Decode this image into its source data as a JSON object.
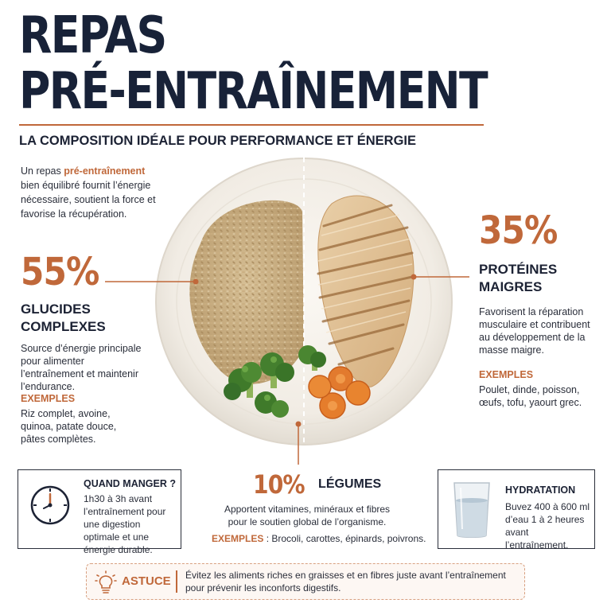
{
  "header": {
    "title_line1": "REPAS",
    "title_line2": "PRÉ-ENTRAÎNEMENT",
    "subtitle": "LA COMPOSITION IDÉALE POUR PERFORMANCE ET ÉNERGIE"
  },
  "intro": {
    "before": "Un repas ",
    "highlight": "pré-entraînement",
    "after": " bien équilibré fournit l’énergie nécessaire, soutient la force et favorise la récupération."
  },
  "carbs": {
    "percent": "55%",
    "label_line1": "GLUCIDES",
    "label_line2": "COMPLEXES",
    "description": "Source d’énergie principale pour alimenter l’entraînement et maintenir l’endurance.",
    "examples_label": "EXEMPLES",
    "examples": "Riz complet, avoine, quinoa, patate douce, pâtes complètes."
  },
  "proteins": {
    "percent": "35%",
    "label_line1": "PROTÉINES",
    "label_line2": "MAIGRES",
    "description": "Favorisent la réparation musculaire et contribuent au développement de la masse maigre.",
    "examples_label": "EXEMPLES",
    "examples": "Poulet, dinde, poisson, œufs, tofu, yaourt grec."
  },
  "vegetables": {
    "percent": "10%",
    "label": "LÉGUMES",
    "description_line1": "Apportent vitamines, minéraux et fibres",
    "description_line2": "pour le soutien global de l’organisme.",
    "examples_label": "EXEMPLES",
    "examples": " : Brocoli, carottes, épinards, poivrons."
  },
  "when": {
    "icon": "clock-icon",
    "title": "QUAND MANGER ?",
    "text": "1h30 à 3h avant l’entraînement pour une digestion optimale et une énergie durable."
  },
  "hydration": {
    "icon": "water-glass-icon",
    "title": "HYDRATATION",
    "text": "Buvez 400 à 600 ml d’eau 1 à 2 heures avant l’entraînement."
  },
  "tip": {
    "icon": "lightbulb-icon",
    "label": "ASTUCE",
    "text_line1": "Évitez les aliments riches en graisses et en fibres juste avant l’entraînement",
    "text_line2": "pour prévenir les inconforts digestifs."
  },
  "colors": {
    "accent": "#c0683a",
    "navy": "#182238",
    "text": "#2a2e3a"
  }
}
